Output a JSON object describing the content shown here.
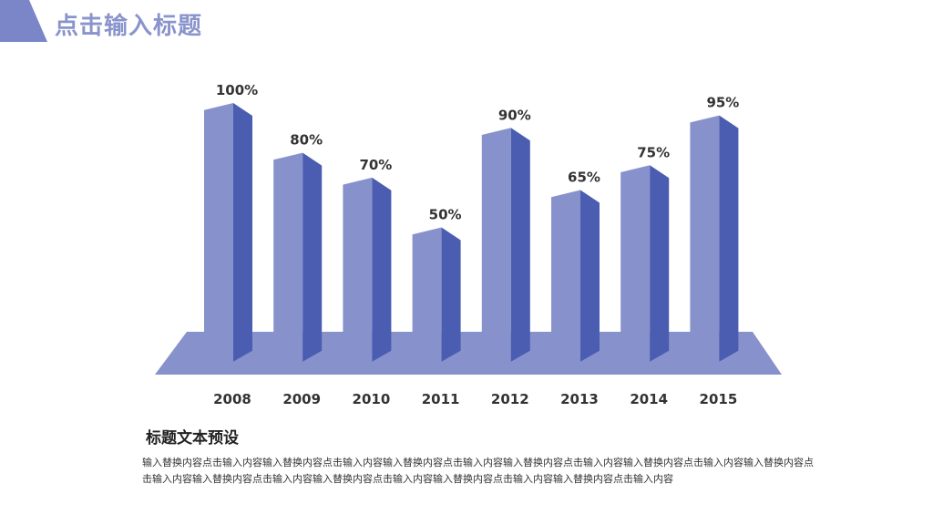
{
  "header": {
    "title": "点击输入标题",
    "accent_color": "#7b86c8"
  },
  "colors": {
    "bar_front": "#8792cc",
    "bar_side": "#4a5db0",
    "floor": "#8792cc",
    "title": "#8a94cc"
  },
  "chart_data": {
    "type": "bar",
    "categories": [
      "2008",
      "2009",
      "2010",
      "2011",
      "2012",
      "2013",
      "2014",
      "2015"
    ],
    "values": [
      100,
      80,
      70,
      50,
      90,
      65,
      75,
      95
    ],
    "value_labels": [
      "100%",
      "80%",
      "70%",
      "50%",
      "90%",
      "65%",
      "75%",
      "95%"
    ],
    "unit": "%",
    "style": "3d-columns",
    "title": "",
    "xlabel": "",
    "ylabel": "",
    "grid": false,
    "legend": "none"
  },
  "section": {
    "title": "标题文本预设",
    "body": "输入替换内容点击输入内容输入替换内容点击输入内容输入替换内容点击输入内容输入替换内容点击输入内容输入替换内容点击输入内容输入替换内容点击输入内容输入替换内容点击输入内容输入替换内容点击输入内容输入替换内容点击输入内容输入替换内容点击输入内容"
  }
}
